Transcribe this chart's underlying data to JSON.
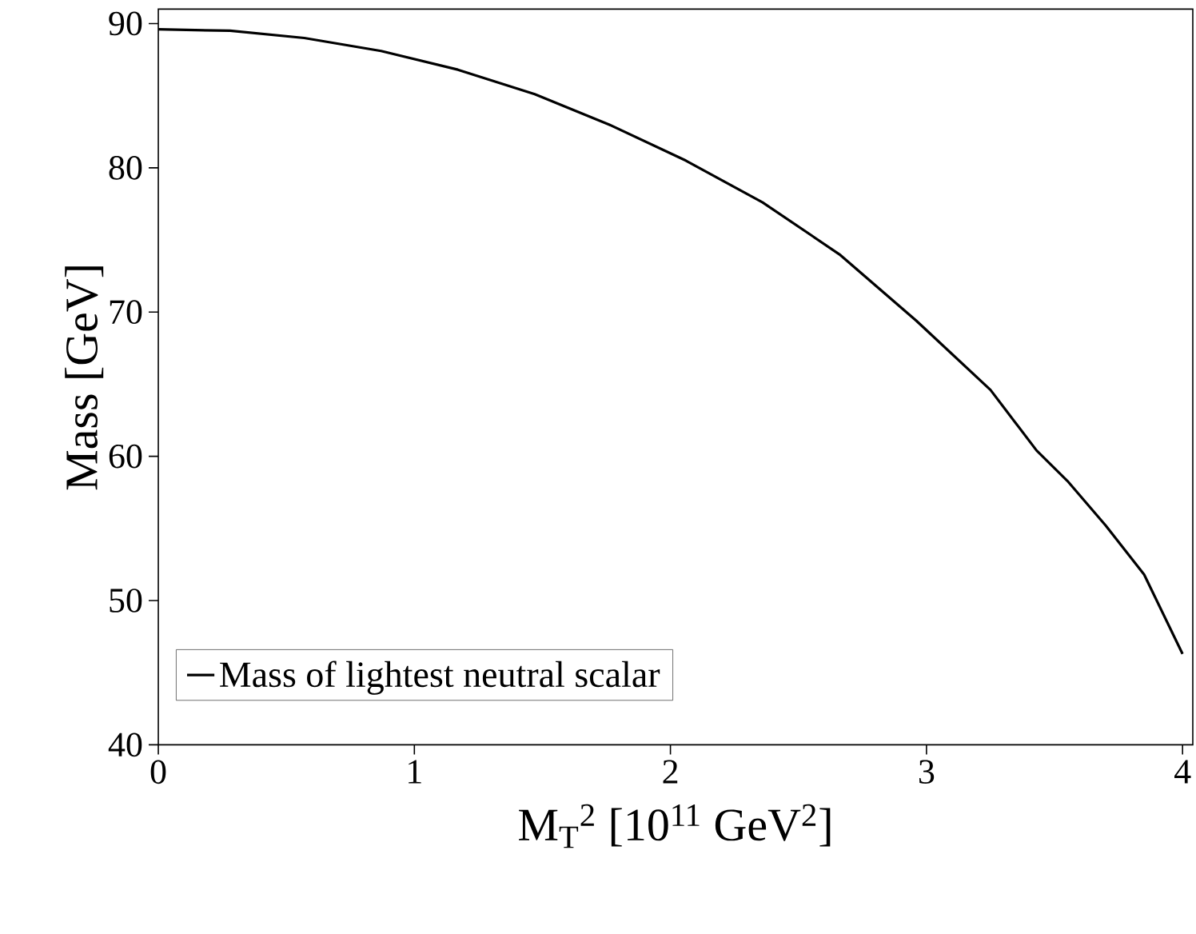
{
  "chart_data": {
    "type": "line",
    "xlabel": "M$_{T}$$^{2}$ [10$^{11}$ GeV$^{2}$]",
    "ylabel": "Mass [GeV]",
    "x": [
      0,
      0.28,
      0.57,
      0.87,
      1.17,
      1.47,
      1.76,
      2.06,
      2.36,
      2.66,
      2.96,
      3.25,
      3.43,
      3.55,
      3.7,
      3.85,
      4.0
    ],
    "series": [
      {
        "name": "Mass of lightest neutral scalar",
        "color": "#000000",
        "values": [
          89.6,
          89.5,
          89.0,
          88.1,
          86.8,
          85.1,
          83.0,
          80.5,
          77.6,
          74.0,
          69.4,
          64.6,
          60.4,
          58.3,
          55.2,
          51.8,
          46.3
        ]
      }
    ],
    "xlim": [
      0,
      4.04
    ],
    "ylim": [
      40,
      91
    ],
    "xticks": [
      0,
      1,
      2,
      3,
      4
    ],
    "yticks": [
      40,
      50,
      60,
      70,
      80,
      90
    ],
    "legend": "bottom left",
    "grid": false,
    "marker": "none",
    "line_style": "solid"
  }
}
